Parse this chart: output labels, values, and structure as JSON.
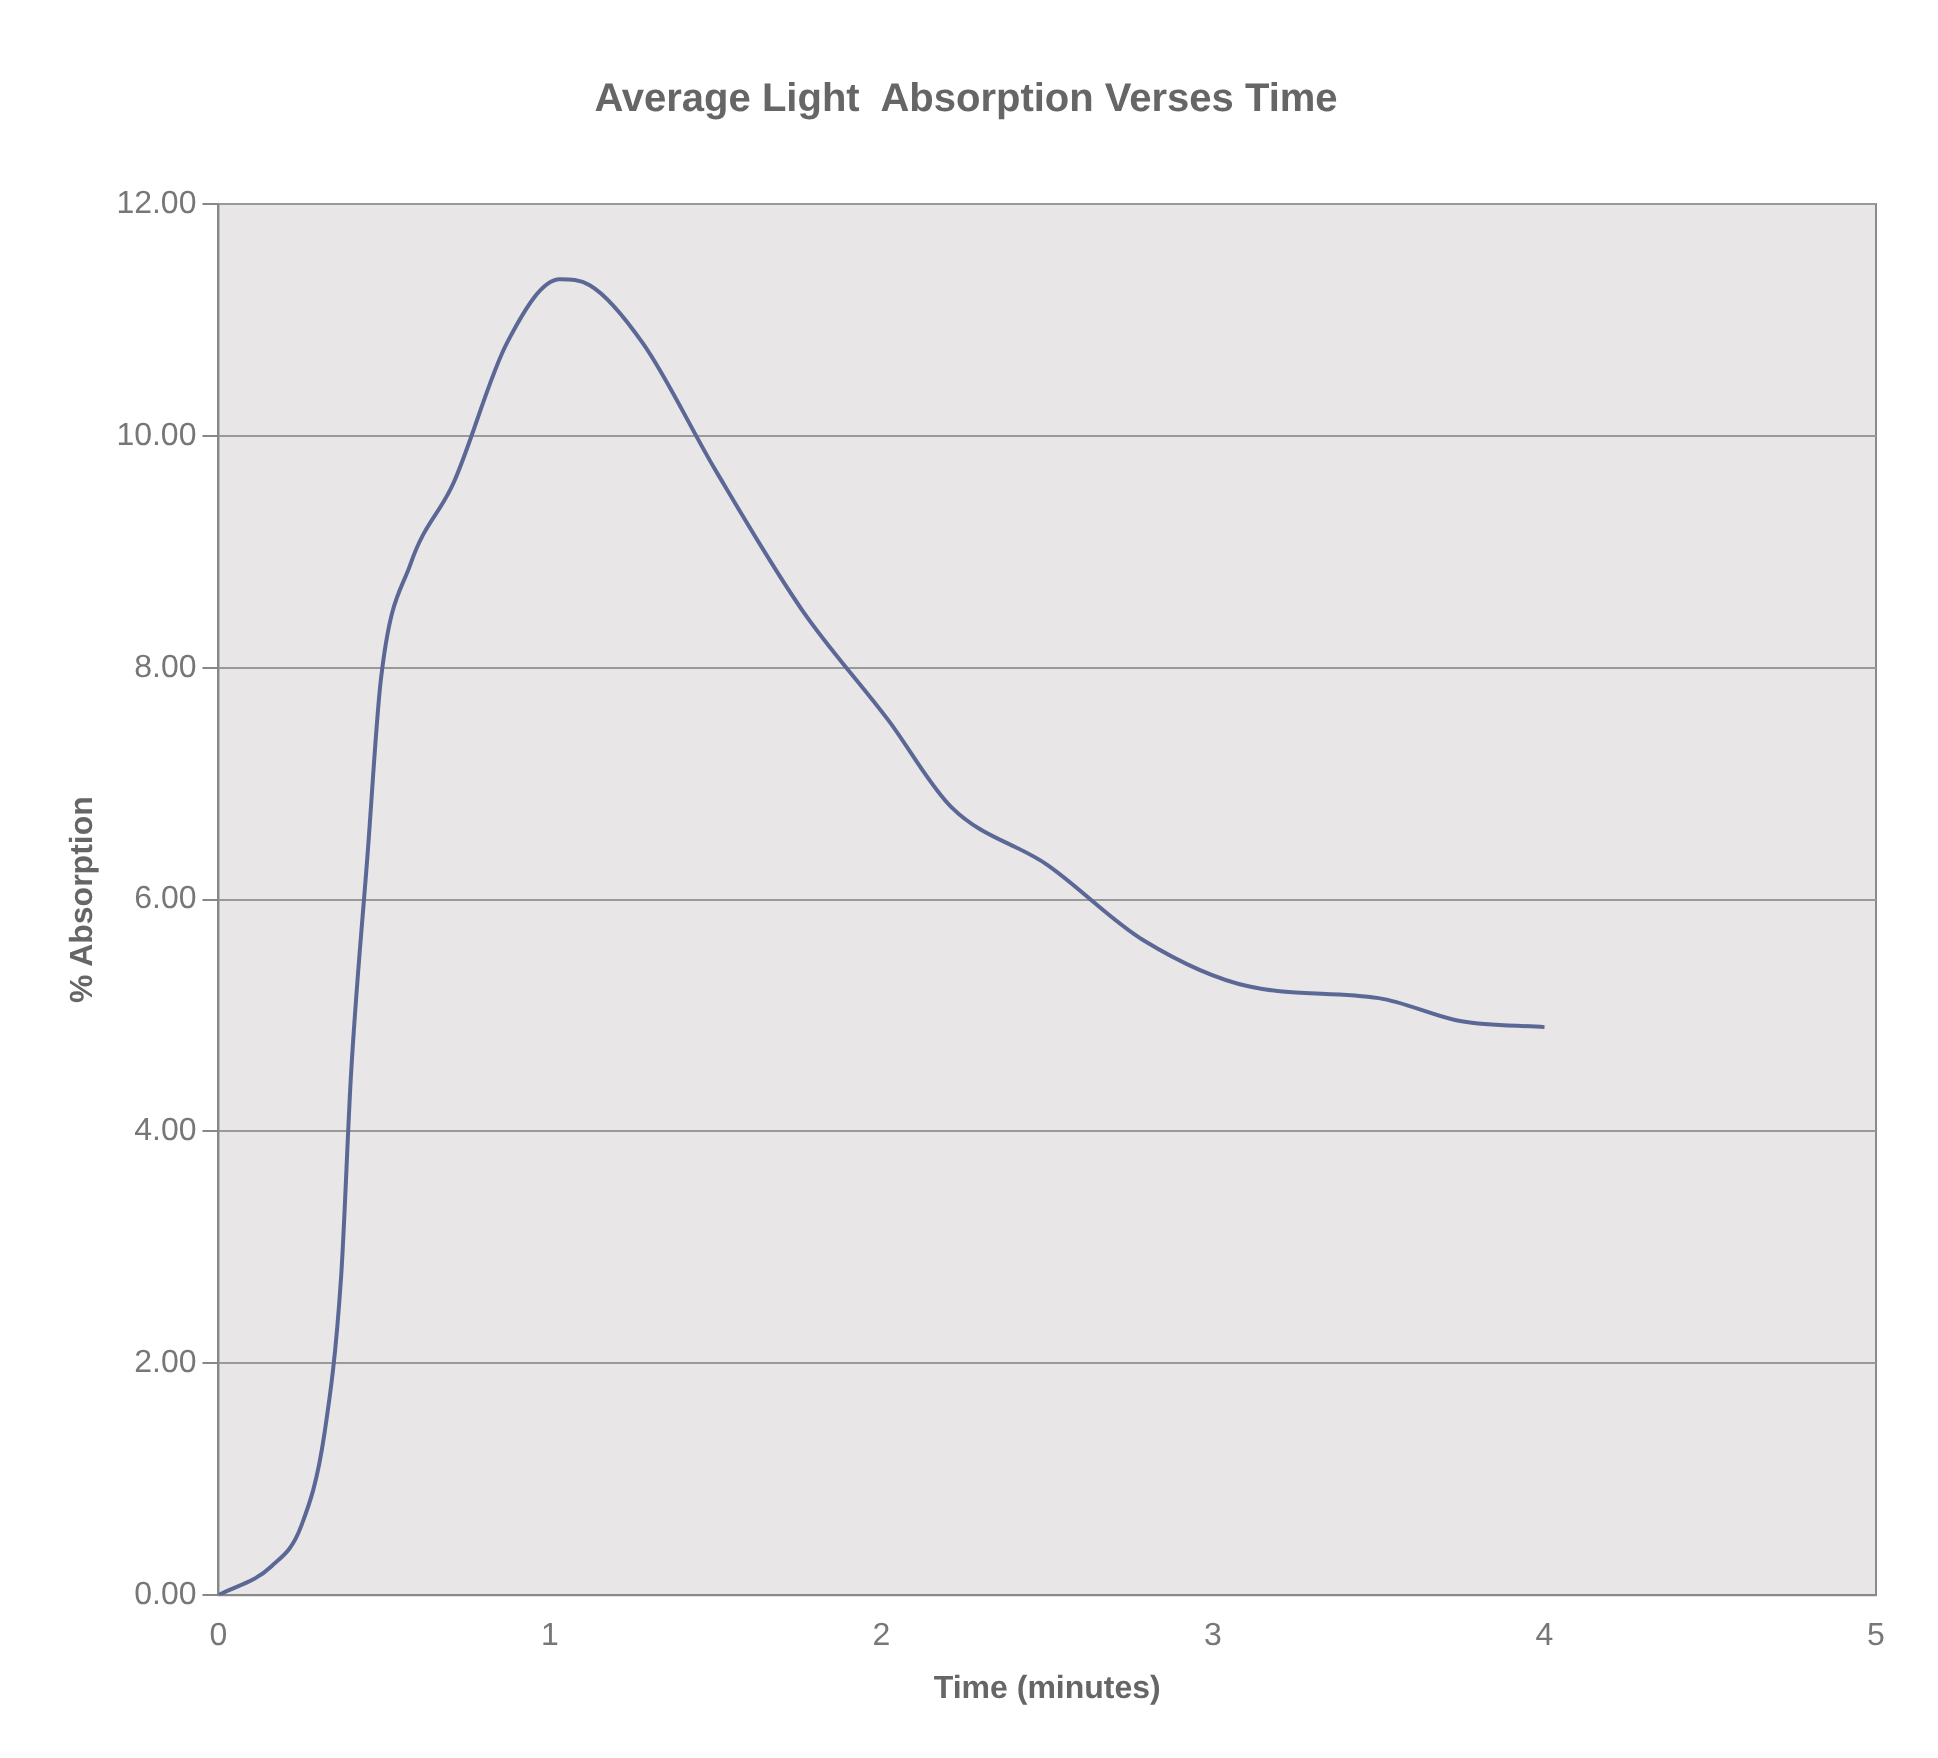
{
  "chart_data": {
    "type": "line",
    "title": "Average Light  Absorption Verses Time",
    "xlabel": "Time (minutes)",
    "ylabel": "% Absorption",
    "series": [
      {
        "color": "#5b6896",
        "x": [
          0,
          0.16,
          0.25,
          0.32,
          0.37,
          0.4,
          0.45,
          0.49,
          0.58,
          0.71,
          0.87,
          1.03,
          1.12,
          1.28,
          1.5,
          1.76,
          2.02,
          2.21,
          2.5,
          2.79,
          3.11,
          3.5,
          3.75,
          4
        ],
        "values": [
          0,
          0.25,
          0.6,
          1.4,
          2.75,
          4.5,
          6.4,
          7.9,
          8.9,
          9.6,
          10.8,
          11.35,
          11.3,
          10.8,
          9.7,
          8.5,
          7.55,
          6.8,
          6.3,
          5.65,
          5.25,
          5.15,
          4.95,
          4.9
        ]
      }
    ],
    "xlim": [
      0,
      5
    ],
    "xticks": [
      0,
      1,
      2,
      3,
      4,
      5
    ],
    "ylim": [
      0,
      12
    ],
    "yticks": [
      {
        "value": 0,
        "label": "0.00"
      },
      {
        "value": 2,
        "label": "2.00"
      },
      {
        "value": 4,
        "label": "4.00"
      },
      {
        "value": 6,
        "label": "6.00"
      },
      {
        "value": 8,
        "label": "8.00"
      },
      {
        "value": 10,
        "label": "10.00"
      },
      {
        "value": 12,
        "label": "12.00"
      }
    ],
    "grid": "y",
    "legend": false,
    "marker": "none",
    "line_style": "solid"
  }
}
